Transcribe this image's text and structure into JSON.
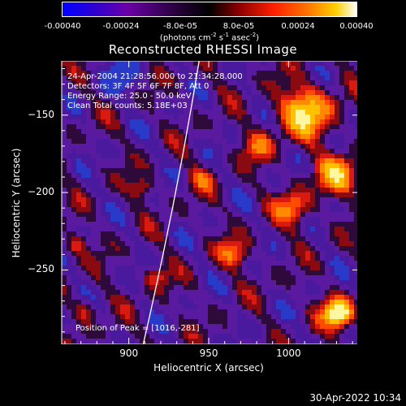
{
  "colorbar": {
    "ticks": [
      "-0.00040",
      "-0.00024",
      "-8.0e-05",
      "8.0e-05",
      "0.00024",
      "0.00040"
    ],
    "unit_main": "(photons cm",
    "unit_sup1": "-2",
    "unit_mid": " s",
    "unit_sup2": "-1",
    "unit_end": " asec",
    "unit_sup3": "-2",
    "unit_close": ")"
  },
  "chart_data": {
    "type": "heatmap",
    "title": "Reconstructed RHESSI Image",
    "xlabel": "Heliocentric X (arcsec)",
    "ylabel": "Heliocentric Y (arcsec)",
    "xlim": [
      858,
      1044
    ],
    "ylim": [
      -298,
      -115
    ],
    "x_ticks": [
      900,
      950,
      1000
    ],
    "y_ticks": [
      -150,
      -200,
      -250
    ],
    "x_tick_labels": [
      "900",
      "950",
      "1000"
    ],
    "y_tick_labels": [
      "−150",
      "−200",
      "−250"
    ],
    "value_range": [
      -0.0004,
      0.0004
    ],
    "peak_position": [
      1016,
      -281
    ],
    "limb_line": [
      [
        909,
        -298
      ],
      [
        944,
        -115
      ]
    ],
    "annotations": [
      "24-Apr-2004 21:28:56.000 to 21:34:28.000",
      "Detectors: 3F 4F 5F 6F 7F 8F, Att 0",
      "Energy Range: 25.0 - 50.0 keV",
      "Clean    Total counts: 5.18E+03",
      "Position of Peak = [1016,-281]"
    ]
  },
  "footer": {
    "timestamp": "30-Apr-2022 10:34"
  }
}
